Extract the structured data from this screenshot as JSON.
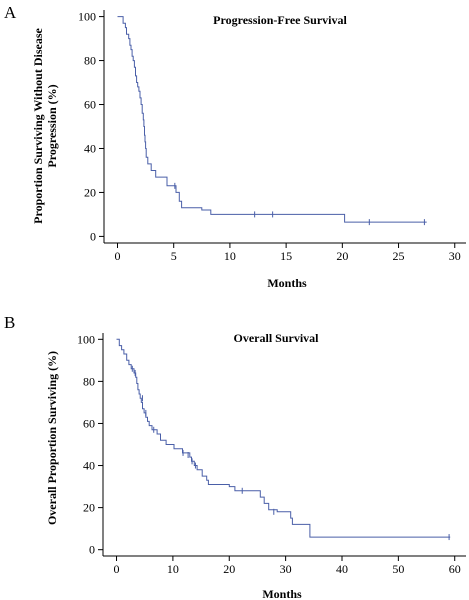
{
  "chart_data": [
    {
      "panel_label": "A",
      "type": "line",
      "title": "Progression-Free Survival",
      "xlabel": "Months",
      "ylabel_lines": [
        "Proportion Surviving Without Disease",
        "Progression (%)"
      ],
      "xlim": [
        -1.2,
        31
      ],
      "ylim": [
        -3,
        103
      ],
      "xticks": [
        0,
        5,
        10,
        15,
        20,
        25,
        30
      ],
      "yticks": [
        0,
        20,
        40,
        60,
        80,
        100
      ],
      "grid": false,
      "line_color": "#4a5fa8",
      "series": [
        {
          "steps": [
            [
              0,
              100
            ],
            [
              0.3,
              100
            ],
            [
              0.5,
              97
            ],
            [
              0.7,
              95
            ],
            [
              0.8,
              92
            ],
            [
              1.0,
              90
            ],
            [
              1.1,
              87
            ],
            [
              1.2,
              85
            ],
            [
              1.3,
              82
            ],
            [
              1.4,
              80
            ],
            [
              1.5,
              77
            ],
            [
              1.6,
              73
            ],
            [
              1.7,
              70
            ],
            [
              1.8,
              68
            ],
            [
              1.9,
              66
            ],
            [
              2.0,
              63
            ],
            [
              2.1,
              60
            ],
            [
              2.2,
              56
            ],
            [
              2.3,
              53
            ],
            [
              2.35,
              50
            ],
            [
              2.4,
              46
            ],
            [
              2.45,
              43
            ],
            [
              2.5,
              40
            ],
            [
              2.55,
              36
            ],
            [
              2.7,
              33
            ],
            [
              3.0,
              30
            ],
            [
              3.4,
              27
            ],
            [
              4.4,
              23
            ],
            [
              5.2,
              20
            ],
            [
              5.5,
              16
            ],
            [
              5.7,
              13
            ],
            [
              7.5,
              12
            ],
            [
              8.3,
              10
            ],
            [
              20.2,
              6.5
            ],
            [
              27.5,
              6.5
            ]
          ],
          "censored": [
            [
              5.1,
              23
            ],
            [
              12.2,
              10
            ],
            [
              13.8,
              10
            ],
            [
              22.4,
              6.5
            ],
            [
              27.3,
              6.5
            ]
          ]
        }
      ]
    },
    {
      "panel_label": "B",
      "type": "line",
      "title": "Overall Survival",
      "xlabel": "Months",
      "ylabel_lines": [
        "Overall Proportion Surviving (%)"
      ],
      "xlim": [
        -2.4,
        62
      ],
      "ylim": [
        -3,
        103
      ],
      "xticks": [
        0,
        10,
        20,
        30,
        40,
        50,
        60
      ],
      "yticks": [
        0,
        20,
        40,
        60,
        80,
        100
      ],
      "grid": false,
      "line_color": "#4a5fa8",
      "series": [
        {
          "steps": [
            [
              0,
              100
            ],
            [
              0.5,
              97
            ],
            [
              0.9,
              95
            ],
            [
              1.3,
              93
            ],
            [
              1.8,
              90
            ],
            [
              2.2,
              88
            ],
            [
              2.6,
              86
            ],
            [
              3.1,
              84
            ],
            [
              3.4,
              82
            ],
            [
              3.6,
              79
            ],
            [
              3.8,
              76
            ],
            [
              4.0,
              74
            ],
            [
              4.2,
              72
            ],
            [
              4.4,
              70
            ],
            [
              4.6,
              67
            ],
            [
              4.9,
              65
            ],
            [
              5.2,
              63
            ],
            [
              5.5,
              61
            ],
            [
              5.8,
              59
            ],
            [
              6.3,
              57
            ],
            [
              7.2,
              55
            ],
            [
              7.8,
              52
            ],
            [
              8.8,
              50
            ],
            [
              10.2,
              48
            ],
            [
              11.7,
              46
            ],
            [
              13.0,
              44
            ],
            [
              13.3,
              42
            ],
            [
              13.8,
              40
            ],
            [
              14.3,
              38
            ],
            [
              15.2,
              35
            ],
            [
              16.0,
              33
            ],
            [
              16.3,
              31
            ],
            [
              20.0,
              30
            ],
            [
              21.0,
              28
            ],
            [
              25.5,
              25
            ],
            [
              26.2,
              22
            ],
            [
              27.0,
              19
            ],
            [
              28.5,
              18
            ],
            [
              30.9,
              15
            ],
            [
              31.2,
              12
            ],
            [
              34.3,
              6
            ],
            [
              59.2,
              6
            ]
          ],
          "censored": [
            [
              2.8,
              86
            ],
            [
              3.3,
              84
            ],
            [
              4.6,
              72
            ],
            [
              5.2,
              65
            ],
            [
              6.6,
              57
            ],
            [
              11.8,
              46
            ],
            [
              12.7,
              45
            ],
            [
              13.4,
              42
            ],
            [
              14.0,
              40
            ],
            [
              22.3,
              28
            ],
            [
              27.9,
              18
            ],
            [
              59.0,
              6
            ]
          ]
        }
      ]
    }
  ]
}
